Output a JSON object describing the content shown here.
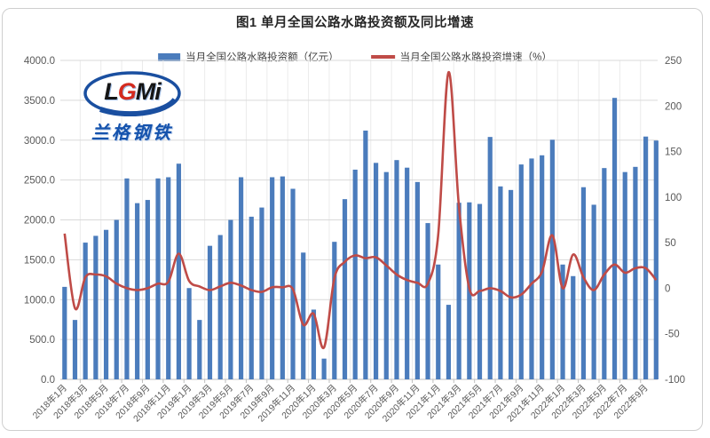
{
  "title": "图1 单月全国公路水路投资额及同比增速",
  "legend": [
    {
      "label": "当月全国公路水路投资额（亿元）",
      "type": "bar",
      "color": "#4b7cbc"
    },
    {
      "label": "当月全国公路水路投资增速（%）",
      "type": "line",
      "color": "#bf4b47"
    }
  ],
  "logo": {
    "text_l": "L",
    "text_g": "G",
    "text_mi": "Mi",
    "subtext": "兰格钢铁",
    "ellipse_color": "#1a4fa0",
    "text_color": "#151515",
    "accent_color": "#d42a1e",
    "sub_color": "#1553ad"
  },
  "colors": {
    "bar": "#4b7cbc",
    "line": "#bf4b47",
    "grid": "#d9d9d9",
    "grid_vertical": "#ebebeb",
    "axis_line": "#bfbfbf",
    "axis_text": "#595959"
  },
  "chart_data": {
    "type": "bar+line",
    "x": [
      "2018年1月",
      "2018年2月",
      "2018年3月",
      "2018年4月",
      "2018年5月",
      "2018年6月",
      "2018年7月",
      "2018年8月",
      "2018年9月",
      "2018年10月",
      "2018年11月",
      "2018年12月",
      "2019年1月",
      "2019年2月",
      "2019年3月",
      "2019年4月",
      "2019年5月",
      "2019年6月",
      "2019年7月",
      "2019年8月",
      "2019年9月",
      "2019年10月",
      "2019年11月",
      "2019年12月",
      "2020年1月",
      "2020年2月",
      "2020年3月",
      "2020年4月",
      "2020年5月",
      "2020年6月",
      "2020年7月",
      "2020年8月",
      "2020年9月",
      "2020年10月",
      "2020年11月",
      "2020年12月",
      "2021年1月",
      "2021年2月",
      "2021年3月",
      "2021年4月",
      "2021年5月",
      "2021年6月",
      "2021年7月",
      "2021年8月",
      "2021年9月",
      "2021年10月",
      "2021年11月",
      "2021年12月",
      "2022年1月",
      "2022年2月",
      "2022年3月",
      "2022年4月",
      "2022年5月",
      "2022年6月",
      "2022年7月",
      "2022年8月",
      "2022年9月",
      "2022年10月"
    ],
    "x_tick_labels": [
      "2018年1月",
      "2018年3月",
      "2018年5月",
      "2018年7月",
      "2018年9月",
      "2018年11月",
      "2019年1月",
      "2019年3月",
      "2019年5月",
      "2019年7月",
      "2019年9月",
      "2019年11月",
      "2020年1月",
      "2020年3月",
      "2020年5月",
      "2020年7月",
      "2020年9月",
      "2020年11月",
      "2021年1月",
      "2021年3月",
      "2021年5月",
      "2021年7月",
      "2021年9月",
      "2021年11月",
      "2022年1月",
      "2022年3月",
      "2022年5月",
      "2022年7月",
      "2022年9月"
    ],
    "series": [
      {
        "name": "当月全国公路水路投资额（亿元）",
        "type": "bar",
        "axis": "left",
        "color": "#4b7cbc",
        "values": [
          1160,
          745,
          1715,
          1800,
          1875,
          2000,
          2520,
          2210,
          2250,
          2520,
          2535,
          2705,
          1145,
          745,
          1675,
          1810,
          2000,
          2535,
          2040,
          2155,
          2535,
          2545,
          2390,
          1590,
          875,
          260,
          1725,
          2260,
          2630,
          3120,
          2715,
          2600,
          2750,
          2655,
          2475,
          1960,
          1440,
          935,
          2215,
          2220,
          2200,
          3040,
          2420,
          2375,
          2695,
          2770,
          2810,
          3005,
          1440,
          1295,
          2410,
          2190,
          2650,
          3530,
          2600,
          2665,
          3045,
          2995
        ]
      },
      {
        "name": "当月全国公路水路投资增速（%）",
        "type": "line",
        "axis": "right",
        "color": "#bf4b47",
        "values": [
          60,
          -22,
          12,
          15,
          13,
          5,
          0,
          -2,
          0,
          5,
          7,
          38,
          8,
          2,
          -2,
          2,
          6,
          3,
          -2,
          -4,
          1,
          1,
          -1,
          -40,
          -28,
          -65,
          11,
          29,
          36,
          33,
          34,
          25,
          15,
          9,
          6,
          5,
          58,
          237,
          90,
          0,
          -3,
          0,
          -3,
          -10,
          -7,
          5,
          18,
          58,
          0,
          37,
          12,
          -2,
          15,
          26,
          17,
          22,
          22,
          9
        ]
      }
    ],
    "left_axis": {
      "min": 0,
      "max": 4000,
      "step": 500,
      "tick_labels": [
        "4000.0",
        "3500.0",
        "3000.0",
        "2500.0",
        "2000.0",
        "1500.0",
        "1000.0",
        "500.0",
        "0.0"
      ]
    },
    "right_axis": {
      "min": -100,
      "max": 250,
      "step": 50,
      "tick_labels": [
        "250",
        "200",
        "150",
        "100",
        "50",
        "0",
        "-50",
        "-100"
      ]
    },
    "grid": true,
    "legend_position": "top"
  }
}
